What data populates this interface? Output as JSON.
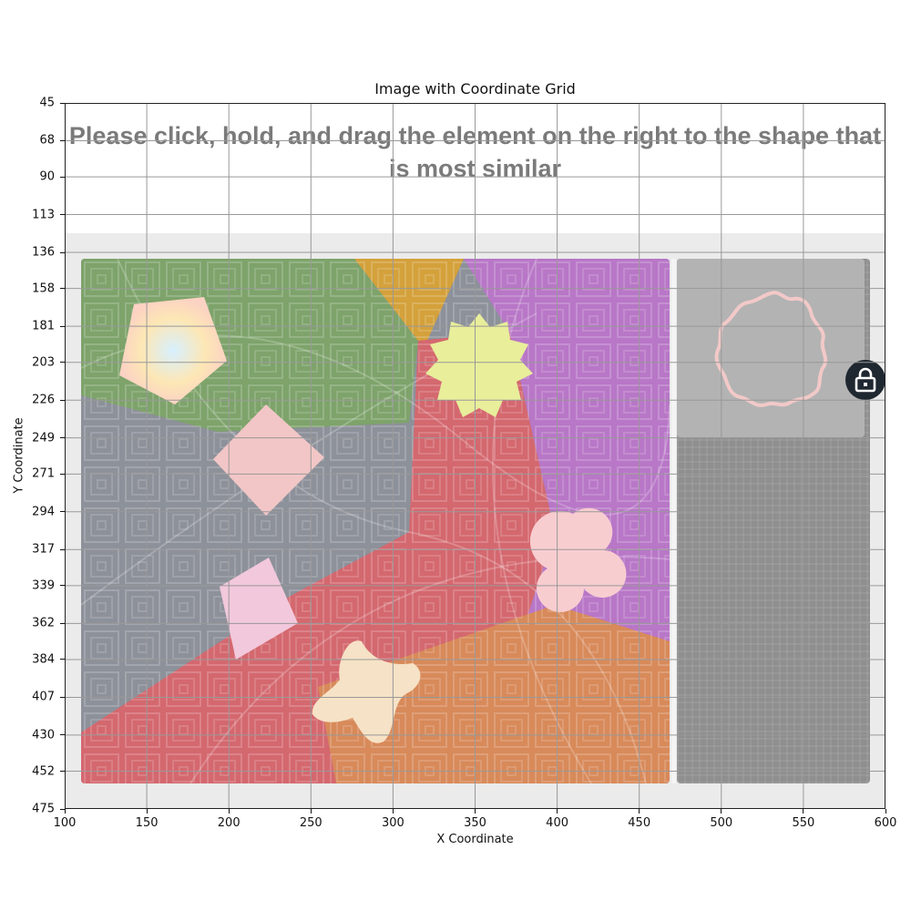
{
  "figure": {
    "title": "Image with Coordinate Grid",
    "xlabel": "X Coordinate",
    "ylabel": "Y Coordinate"
  },
  "axes": {
    "x_range": [
      100,
      600
    ],
    "y_range": [
      45,
      475
    ],
    "x_ticks": [
      "100",
      "150",
      "200",
      "250",
      "300",
      "350",
      "400",
      "450",
      "500",
      "550",
      "600"
    ],
    "y_ticks": [
      "45",
      "68",
      "90",
      "113",
      "136",
      "158",
      "181",
      "203",
      "226",
      "249",
      "271",
      "294",
      "317",
      "339",
      "362",
      "384",
      "407",
      "430",
      "452",
      "475"
    ],
    "grid": true,
    "y_inverted": true
  },
  "captcha": {
    "instruction": "Please click, hold, and drag the element on the right to the shape that is most similar",
    "shapes_in_image": [
      "pentagon-shape",
      "star-burst-shape",
      "diamond-shape",
      "clover-shape",
      "parallelogram-shape",
      "cross-blob-shape"
    ],
    "drag_piece_shape": "wavy-ring-shape",
    "lock_icon": "lock-icon"
  },
  "colors": {
    "panel": "#ebebeb",
    "instruction_text": "#7a7a7a",
    "lock_button": "#1f2730",
    "grid": "#999999"
  }
}
